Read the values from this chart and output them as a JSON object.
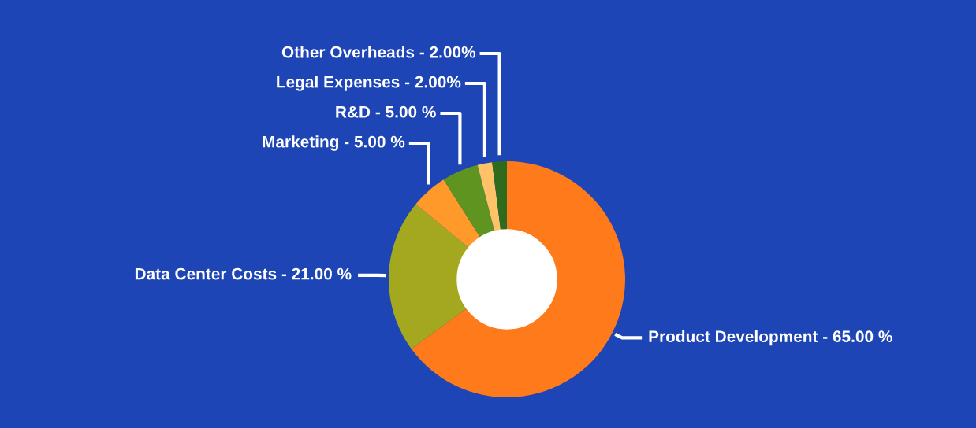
{
  "chart_data": {
    "type": "donut",
    "categories": [
      "Product Development - 65.00 %",
      "Data Center Costs - 21.00 %",
      "Marketing - 5.00 %",
      "R&D - 5.00 %",
      "Legal Expenses - 2.00%",
      "Other Overheads - 2.00%"
    ],
    "values": [
      65,
      21,
      5,
      5,
      2,
      2
    ],
    "colors": [
      "#ff7a1a",
      "#a4a81e",
      "#ff9a2a",
      "#5f9420",
      "#ffc266",
      "#2f6b1c"
    ]
  }
}
